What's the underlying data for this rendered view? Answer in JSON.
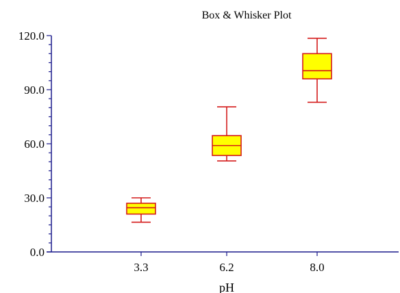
{
  "chart_data": {
    "type": "box",
    "title": "Box & Whisker Plot",
    "xlabel": "pH",
    "ylabel": "",
    "categories": [
      "3.3",
      "6.2",
      "8.0"
    ],
    "boxes": [
      {
        "min": 16.5,
        "q1": 21.0,
        "median": 24.5,
        "q3": 27.0,
        "max": 30.0
      },
      {
        "min": 50.5,
        "q1": 53.5,
        "median": 59.0,
        "q3": 64.5,
        "max": 80.5
      },
      {
        "min": 83.0,
        "q1": 96.0,
        "median": 100.5,
        "q3": 110.0,
        "max": 118.5
      }
    ],
    "ylim": [
      0,
      120
    ],
    "yticks": [
      "0.0",
      "30.0",
      "60.0",
      "90.0",
      "120.0"
    ],
    "grid": false,
    "colors": {
      "axis": "#1a1a8c",
      "box_fill": "#ffff00",
      "box_stroke": "#d41a1a"
    }
  }
}
